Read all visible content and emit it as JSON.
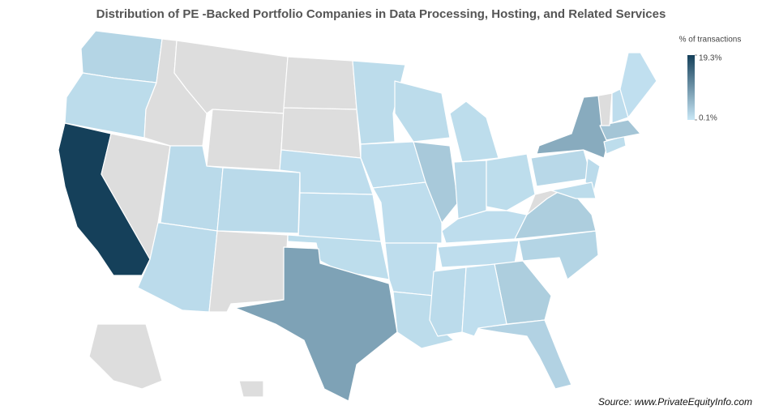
{
  "chart_data": {
    "type": "choropleth",
    "title": "Distribution of PE -Backed Portfolio Companies in Data Processing, Hosting, and Related Services",
    "values": [
      2.2,
      1.4,
      19.3,
      null,
      null,
      null,
      null,
      1.6,
      1.5,
      1.6,
      null,
      null,
      null,
      1.2,
      1.2,
      1.3,
      8.0,
      1.4,
      1.2,
      1.2,
      1.2,
      1.4,
      3.5,
      1.4,
      1.3,
      1.5,
      1.3,
      1.2,
      1.2,
      1.5,
      3.0,
      2.5,
      1.1,
      2.2,
      3.0,
      null,
      1.8,
      7.0,
      1.5,
      1.4,
      1.3,
      4.0,
      null,
      1.2,
      1.0,
      null,
      null
    ],
    "no_data_color": "#dddddd",
    "colorbar": {
      "title": "% of transactions",
      "zlim": [
        0.1,
        19.3
      ],
      "colors": [
        "#c8e7f6",
        "#15405a"
      ],
      "ticks": [
        {
          "value": 19.3,
          "label": "19.3%"
        },
        {
          "value": 0.1,
          "label": "0.1%"
        }
      ]
    },
    "source": "Source: www.PrivateEquityInfo.com"
  }
}
